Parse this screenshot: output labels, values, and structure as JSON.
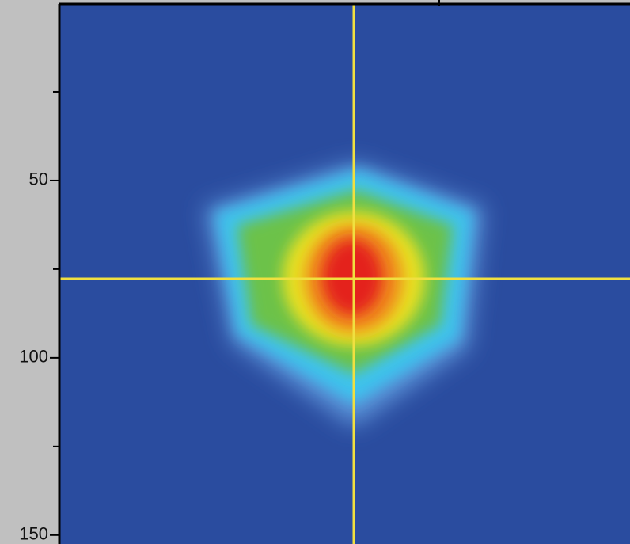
{
  "chart_data": {
    "type": "heatmap",
    "ylim": [
      0,
      152.5
    ],
    "y_inverted": true,
    "yticks": [
      50,
      100,
      150
    ],
    "minor_yticks": [
      25,
      75,
      125
    ]
  }
}
